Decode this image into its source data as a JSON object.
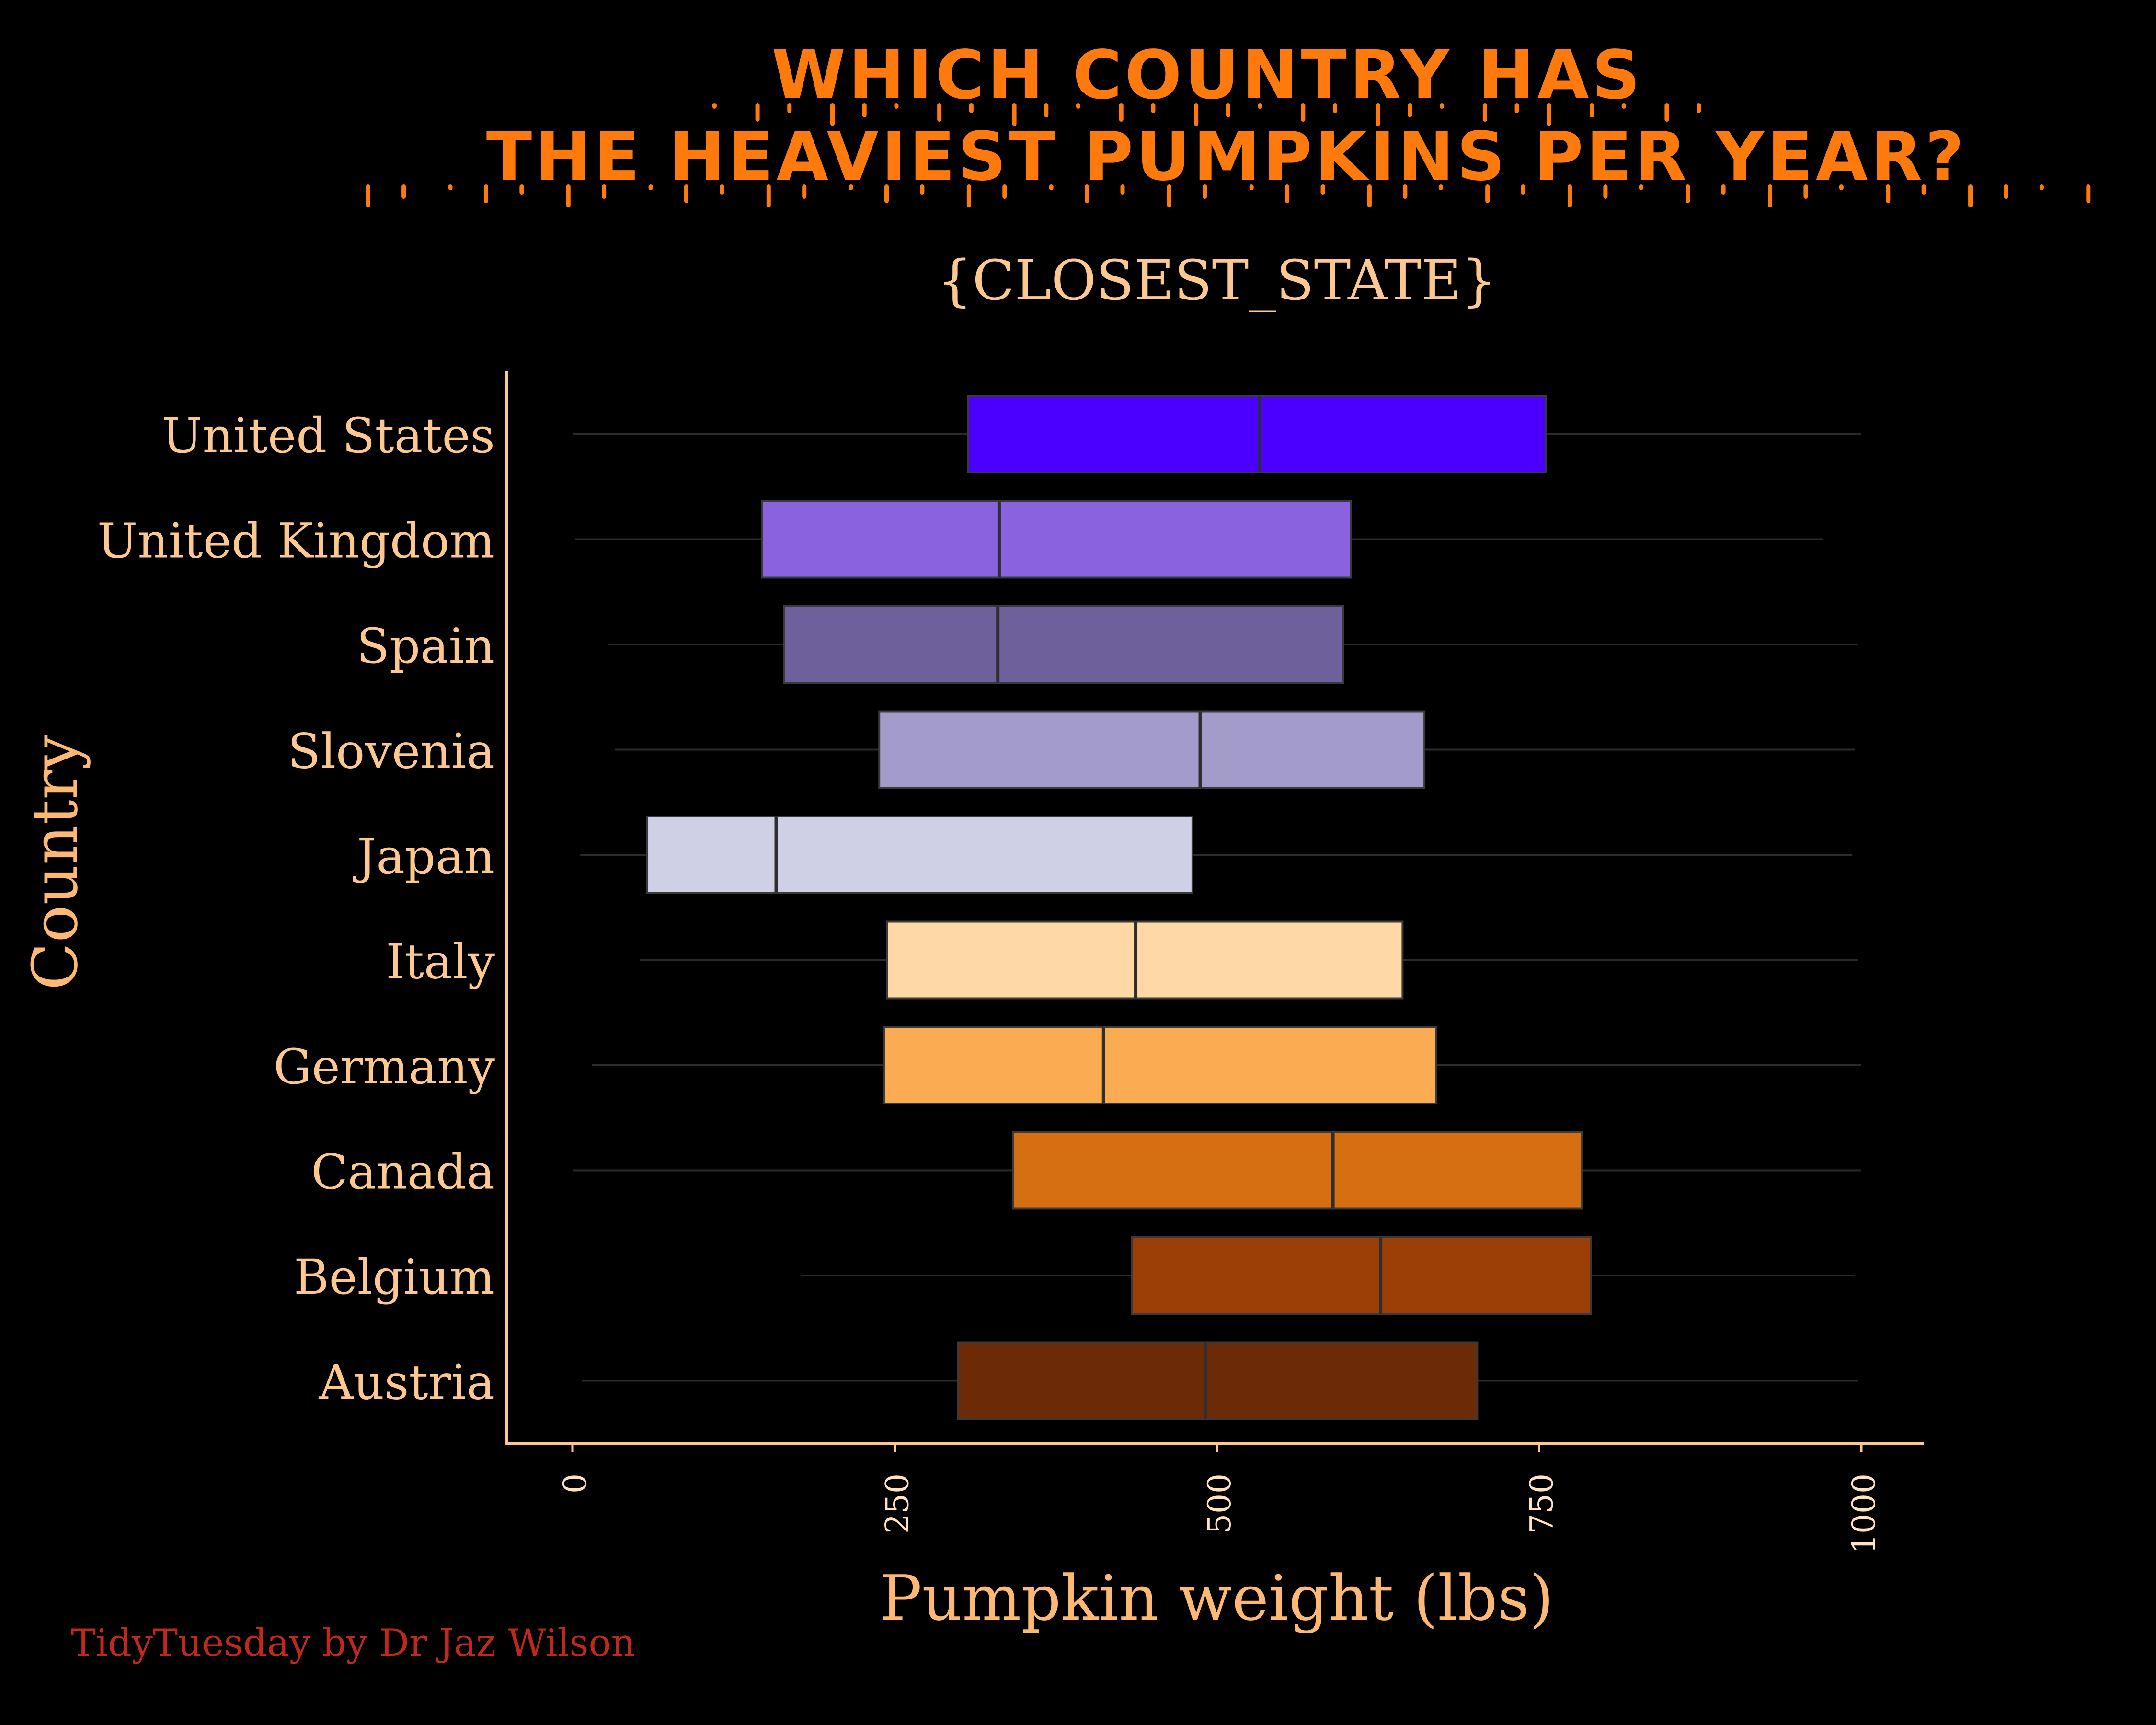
{
  "chart_data": {
    "type": "boxplot",
    "title": [
      "WHICH COUNTRY HAS",
      "THE HEAVIEST PUMPKINS PER YEAR?"
    ],
    "subtitle": "{CLOSEST_STATE}",
    "xlabel": "Pumpkin weight (lbs)",
    "ylabel": "Country",
    "caption": "TidyTuesday by Dr Jaz Wilson",
    "xlim": [
      0,
      1000
    ],
    "xticks": [
      0,
      250,
      500,
      750,
      1000
    ],
    "xtick_labels": [
      "0",
      "250",
      "500",
      "750",
      "1000"
    ],
    "grid": "horizontal whisker lines",
    "legend": "none",
    "categories": [
      "United States",
      "United Kingdom",
      "Spain",
      "Slovenia",
      "Japan",
      "Italy",
      "Germany",
      "Canada",
      "Belgium",
      "Austria"
    ],
    "boxes": [
      {
        "category": "United States",
        "whisker_low": 0,
        "q1": 307,
        "median": 533,
        "q3": 755,
        "whisker_high": 1000,
        "color": "#4b00ff"
      },
      {
        "category": "United Kingdom",
        "whisker_low": 2,
        "q1": 147,
        "median": 331,
        "q3": 604,
        "whisker_high": 970,
        "color": "#8a62df"
      },
      {
        "category": "Spain",
        "whisker_low": 28,
        "q1": 164,
        "median": 330,
        "q3": 598,
        "whisker_high": 997,
        "color": "#6e619b"
      },
      {
        "category": "Slovenia",
        "whisker_low": 33,
        "q1": 238,
        "median": 487,
        "q3": 661,
        "whisker_high": 995,
        "color": "#a39bca"
      },
      {
        "category": "Japan",
        "whisker_low": 6,
        "q1": 58,
        "median": 158,
        "q3": 481,
        "whisker_high": 993,
        "color": "#cfd0e6"
      },
      {
        "category": "Italy",
        "whisker_low": 52,
        "q1": 244,
        "median": 437,
        "q3": 644,
        "whisker_high": 997,
        "color": "#ffd8a6"
      },
      {
        "category": "Germany",
        "whisker_low": 15,
        "q1": 242,
        "median": 412,
        "q3": 670,
        "whisker_high": 1000,
        "color": "#fbab52"
      },
      {
        "category": "Canada",
        "whisker_low": 0,
        "q1": 342,
        "median": 590,
        "q3": 783,
        "whisker_high": 1000,
        "color": "#d66f11"
      },
      {
        "category": "Belgium",
        "whisker_low": 177,
        "q1": 434,
        "median": 627,
        "q3": 790,
        "whisker_high": 995,
        "color": "#9c3f06"
      },
      {
        "category": "Austria",
        "whisker_low": 7,
        "q1": 299,
        "median": 491,
        "q3": 702,
        "whisker_high": 997,
        "color": "#6d2a07"
      }
    ],
    "colors": {
      "background": "#000000",
      "title": "#ff7a0d",
      "text": "#fdc88f",
      "axis": "#fdc88f",
      "caption": "#c0281b",
      "whisker": "#2a2a2a",
      "box_outline": "#3a3a3a"
    }
  }
}
